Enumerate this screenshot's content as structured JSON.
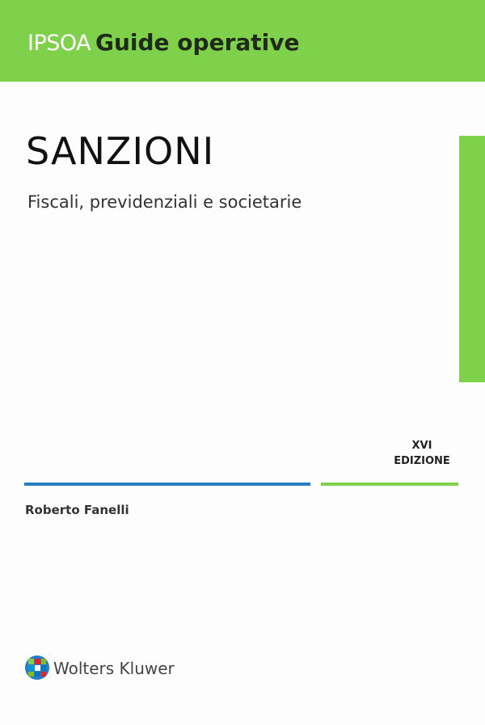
{
  "header": {
    "series": "IPSOA",
    "title": "Guide operative"
  },
  "book": {
    "title": "SANZIONI",
    "subtitle": "Fiscali, previdenziali e societarie",
    "edition": [
      "XVI",
      "EDIZIONE"
    ],
    "author": "Roberto Fanelli"
  },
  "publisher": "Wolters Kluwer"
}
